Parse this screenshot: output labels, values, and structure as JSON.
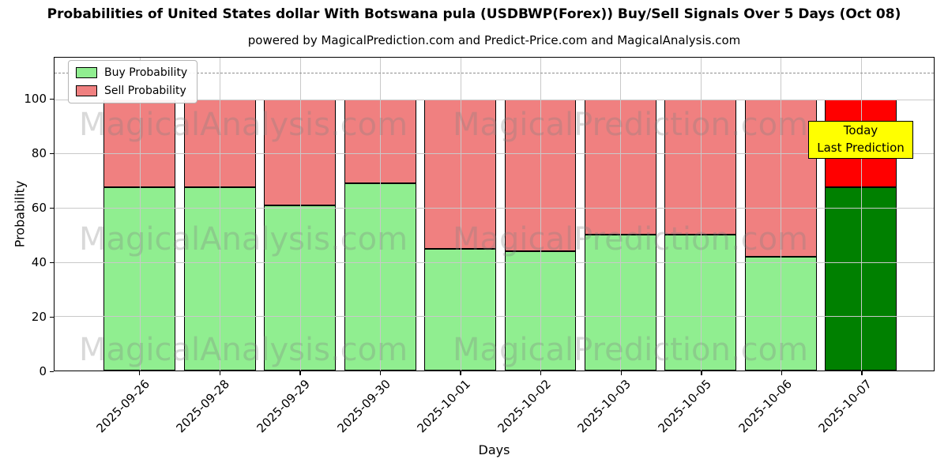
{
  "chart_data": {
    "type": "bar",
    "stacked": true,
    "title": "Probabilities of United States dollar With Botswana pula (USDBWP(Forex)) Buy/Sell Signals Over 5 Days (Oct 08)",
    "subtitle": "powered by MagicalPrediction.com and Predict-Price.com and MagicalAnalysis.com",
    "xlabel": "Days",
    "ylabel": "Probability",
    "categories": [
      "2025-09-26",
      "2025-09-28",
      "2025-09-29",
      "2025-09-30",
      "2025-10-01",
      "2025-10-02",
      "2025-10-03",
      "2025-10-05",
      "2025-10-06",
      "2025-10-07"
    ],
    "series": [
      {
        "name": "Buy Probability",
        "color": "#90ee90",
        "today_color": "#008000",
        "values": [
          67.5,
          67.5,
          61,
          69,
          45,
          44,
          50,
          50,
          42,
          67.5
        ]
      },
      {
        "name": "Sell Probability",
        "color": "#f08080",
        "today_color": "#ff0000",
        "values": [
          32.5,
          32.5,
          39,
          31,
          55,
          56,
          50,
          50,
          58,
          32.5
        ]
      }
    ],
    "today_index": 9,
    "bar_total": 100,
    "ylim": [
      0,
      115.4
    ],
    "yticks": [
      0,
      20,
      40,
      60,
      80,
      100
    ],
    "threshold_line": 110,
    "grid": true,
    "legend_position": "upper left"
  },
  "legend": {
    "items": [
      {
        "label": "Buy Probability",
        "color": "#90ee90"
      },
      {
        "label": "Sell Probability",
        "color": "#f08080"
      }
    ]
  },
  "annotation_box": {
    "lines": [
      "Today",
      "Last Prediction"
    ],
    "bg_color": "#ffff00"
  },
  "watermarks": [
    "MagicalAnalysis.com",
    "MagicalPrediction.com"
  ]
}
